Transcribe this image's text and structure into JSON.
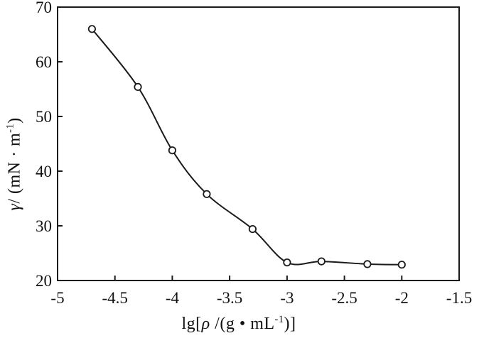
{
  "figure": {
    "background": "#ffffff",
    "axis_color": "#1a1a1a",
    "text_color": "#111111"
  },
  "chart_data": {
    "type": "line",
    "marker": "open-circle",
    "title": "",
    "grid": false,
    "legend": null,
    "x": [
      -4.7,
      -4.3,
      -4.0,
      -3.7,
      -3.3,
      -3.0,
      -2.7,
      -2.3,
      -2.0
    ],
    "y": [
      66.0,
      55.4,
      43.8,
      35.8,
      29.4,
      23.3,
      23.5,
      23.0,
      22.9
    ],
    "xlim": [
      -5,
      -1.5
    ],
    "ylim": [
      20,
      70
    ],
    "xticks": [
      -5,
      -4.5,
      -4,
      -3.5,
      -3,
      -2.5,
      -2,
      -1.5
    ],
    "xtick_labels": [
      "-5",
      "-4.5",
      "-4",
      "-3.5",
      "-3",
      "-2.5",
      "-2",
      "-1.5"
    ],
    "yticks": [
      20,
      30,
      40,
      50,
      60,
      70
    ],
    "ytick_labels": [
      "20",
      "30",
      "40",
      "50",
      "60",
      "70"
    ],
    "xlabel": "lg[ρ /(g • mL⁻¹)]",
    "ylabel": "γ/ (mN · m⁻¹)",
    "xlabel_parts": {
      "pre": "lg[",
      "sym": "ρ",
      "mid": " /(g • mL",
      "sup": "-1",
      "post": ")]"
    },
    "ylabel_parts": {
      "sym": "γ",
      "pre": "/ (mN · m",
      "sup": "-1",
      "post": ")"
    },
    "line_color": "#1a1a1a",
    "marker_fill": "#ffffff"
  }
}
